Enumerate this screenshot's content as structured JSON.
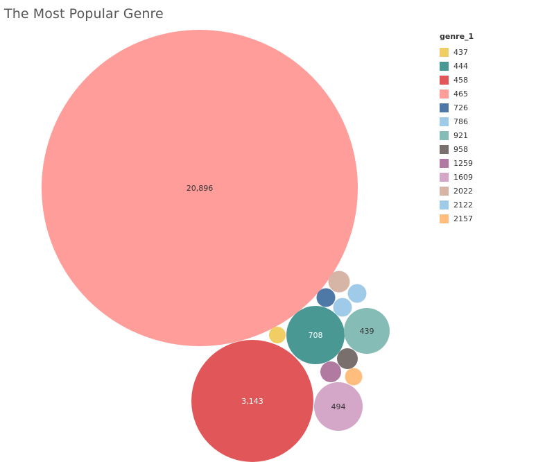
{
  "chart_data": {
    "type": "bubble",
    "title": "The Most Popular Genre",
    "legend": {
      "title": "genre_1",
      "placement": "right"
    },
    "series": [
      {
        "name": "465",
        "value": 20896,
        "label": "20,896",
        "color": "#FF9D9A"
      },
      {
        "name": "458",
        "value": 3143,
        "label": "3,143",
        "color": "#E15759"
      },
      {
        "name": "444",
        "value": 708,
        "label": "708",
        "color": "#499894"
      },
      {
        "name": "1609",
        "value": 494,
        "label": "494",
        "color": "#D4A6C8"
      },
      {
        "name": "921",
        "value": 439,
        "label": "439",
        "color": "#86BCB6"
      },
      {
        "name": "2022",
        "value": 100,
        "label": "",
        "color": "#D7B5A6"
      },
      {
        "name": "2122",
        "value": 78,
        "label": "",
        "color": "#A0CBE8"
      },
      {
        "name": "786",
        "value": 72,
        "label": "",
        "color": "#A0CBE8"
      },
      {
        "name": "726",
        "value": 70,
        "label": "",
        "color": "#4E79A7"
      },
      {
        "name": "958",
        "value": 85,
        "label": "",
        "color": "#79706E"
      },
      {
        "name": "1259",
        "value": 90,
        "label": "",
        "color": "#B07AA1"
      },
      {
        "name": "2157",
        "value": 62,
        "label": "",
        "color": "#FFBE7D"
      },
      {
        "name": "437",
        "value": 60,
        "label": "",
        "color": "#F1CE63"
      }
    ],
    "legend_order": [
      "437",
      "444",
      "458",
      "465",
      "726",
      "786",
      "921",
      "958",
      "1259",
      "1609",
      "2022",
      "2122",
      "2157"
    ]
  }
}
